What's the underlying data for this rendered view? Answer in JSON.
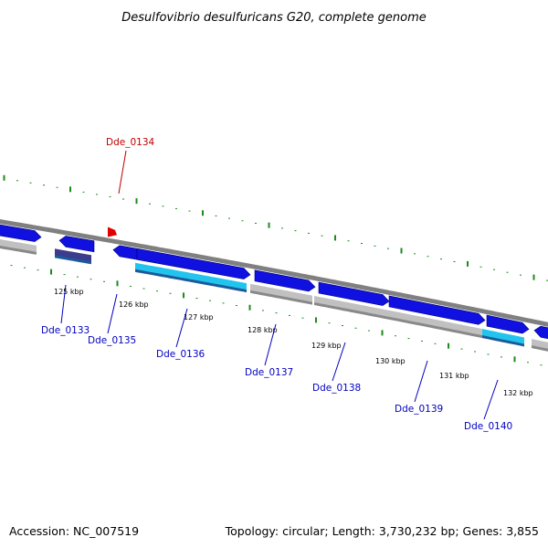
{
  "title": "Desulfovibrio desulfuricans G20, complete genome",
  "footer": {
    "accession": "Accession: NC_007519",
    "summary": "Topology: circular; Length: 3,730,232 bp; Genes: 3,855"
  },
  "colors": {
    "gene_blue": "#1010e0",
    "gene_navy": "#3c3c8c",
    "gene_cyan": "#22c4ee",
    "rna_grey": "#c0c0c0",
    "backbone": "#808080",
    "ticks": "#1d8a1d",
    "highlight": "#e00000",
    "label_blue": "#0000c0",
    "label_red": "#c00000"
  },
  "ruler": [
    "125 kbp",
    "126 kbp",
    "127 kbp",
    "128 kbp",
    "129 kbp",
    "130 kbp",
    "131 kbp",
    "132 kbp"
  ],
  "genes": [
    {
      "label": "Dde_0133",
      "color": "navy"
    },
    {
      "label": "Dde_0134",
      "color": "highlight"
    },
    {
      "label": "Dde_0135",
      "color": "blue"
    },
    {
      "label": "Dde_0136",
      "color": "cyan"
    },
    {
      "label": "Dde_0137",
      "color": "blue"
    },
    {
      "label": "Dde_0138",
      "color": "blue"
    },
    {
      "label": "Dde_0139",
      "color": "blue"
    },
    {
      "label": "Dde_0140",
      "color": "cyan"
    }
  ]
}
